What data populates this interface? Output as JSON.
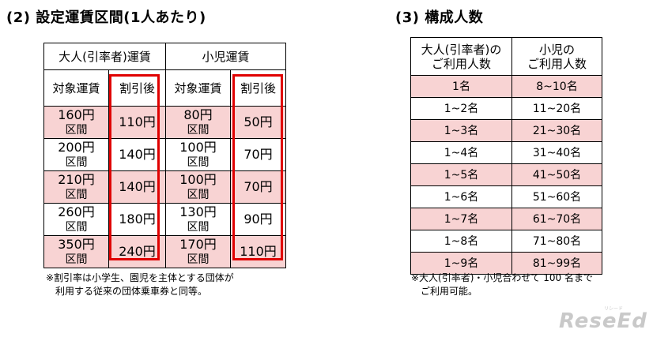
{
  "left": {
    "title": "(2) 設定運賃区間(1人あたり)",
    "headers": {
      "adult_group": "大人(引率者)運賃",
      "child_group": "小児運賃",
      "adult_target": "対象運賃",
      "adult_discount": "割引後",
      "child_target": "対象運賃",
      "child_discount": "割引後"
    },
    "rows": [
      {
        "adult_fare": "160円",
        "adult_section": "区間",
        "adult_disc": "110円",
        "child_fare": "80円",
        "child_section": "区間",
        "child_disc": "50円"
      },
      {
        "adult_fare": "200円",
        "adult_section": "区間",
        "adult_disc": "140円",
        "child_fare": "100円",
        "child_section": "区間",
        "child_disc": "70円"
      },
      {
        "adult_fare": "210円",
        "adult_section": "区間",
        "adult_disc": "140円",
        "child_fare": "100円",
        "child_section": "区間",
        "child_disc": "70円"
      },
      {
        "adult_fare": "260円",
        "adult_section": "区間",
        "adult_disc": "180円",
        "child_fare": "130円",
        "child_section": "区間",
        "child_disc": "90円"
      },
      {
        "adult_fare": "350円",
        "adult_section": "区間",
        "adult_disc": "240円",
        "child_fare": "170円",
        "child_section": "区間",
        "child_disc": "110円"
      }
    ],
    "note_line1": "※割引率は小学生、園児を主体とする団体が",
    "note_line2": "利用する従来の団体乗車券と同等。"
  },
  "right": {
    "title": "(3) 構成人数",
    "headers": {
      "adult_line1": "大人(引率者)の",
      "adult_line2": "ご利用人数",
      "child_line1": "小児の",
      "child_line2": "ご利用人数"
    },
    "rows": [
      {
        "adult": "1名",
        "child": "8~10名"
      },
      {
        "adult": "1~2名",
        "child": "11~20名"
      },
      {
        "adult": "1~3名",
        "child": "21~30名"
      },
      {
        "adult": "1~4名",
        "child": "31~40名"
      },
      {
        "adult": "1~5名",
        "child": "41~50名"
      },
      {
        "adult": "1~6名",
        "child": "51~60名"
      },
      {
        "adult": "1~7名",
        "child": "61~70名"
      },
      {
        "adult": "1~8名",
        "child": "71~80名"
      },
      {
        "adult": "1~9名",
        "child": "81~99名"
      }
    ],
    "note_line1": "※大人(引率者)・小児合わせて 100 名まで",
    "note_line2": "ご利用可能。"
  },
  "watermark": {
    "logo": "ReseEd",
    "sub": "リシード"
  },
  "colors": {
    "pink_row": "#f8d3d3",
    "highlight_border": "#e00000"
  }
}
